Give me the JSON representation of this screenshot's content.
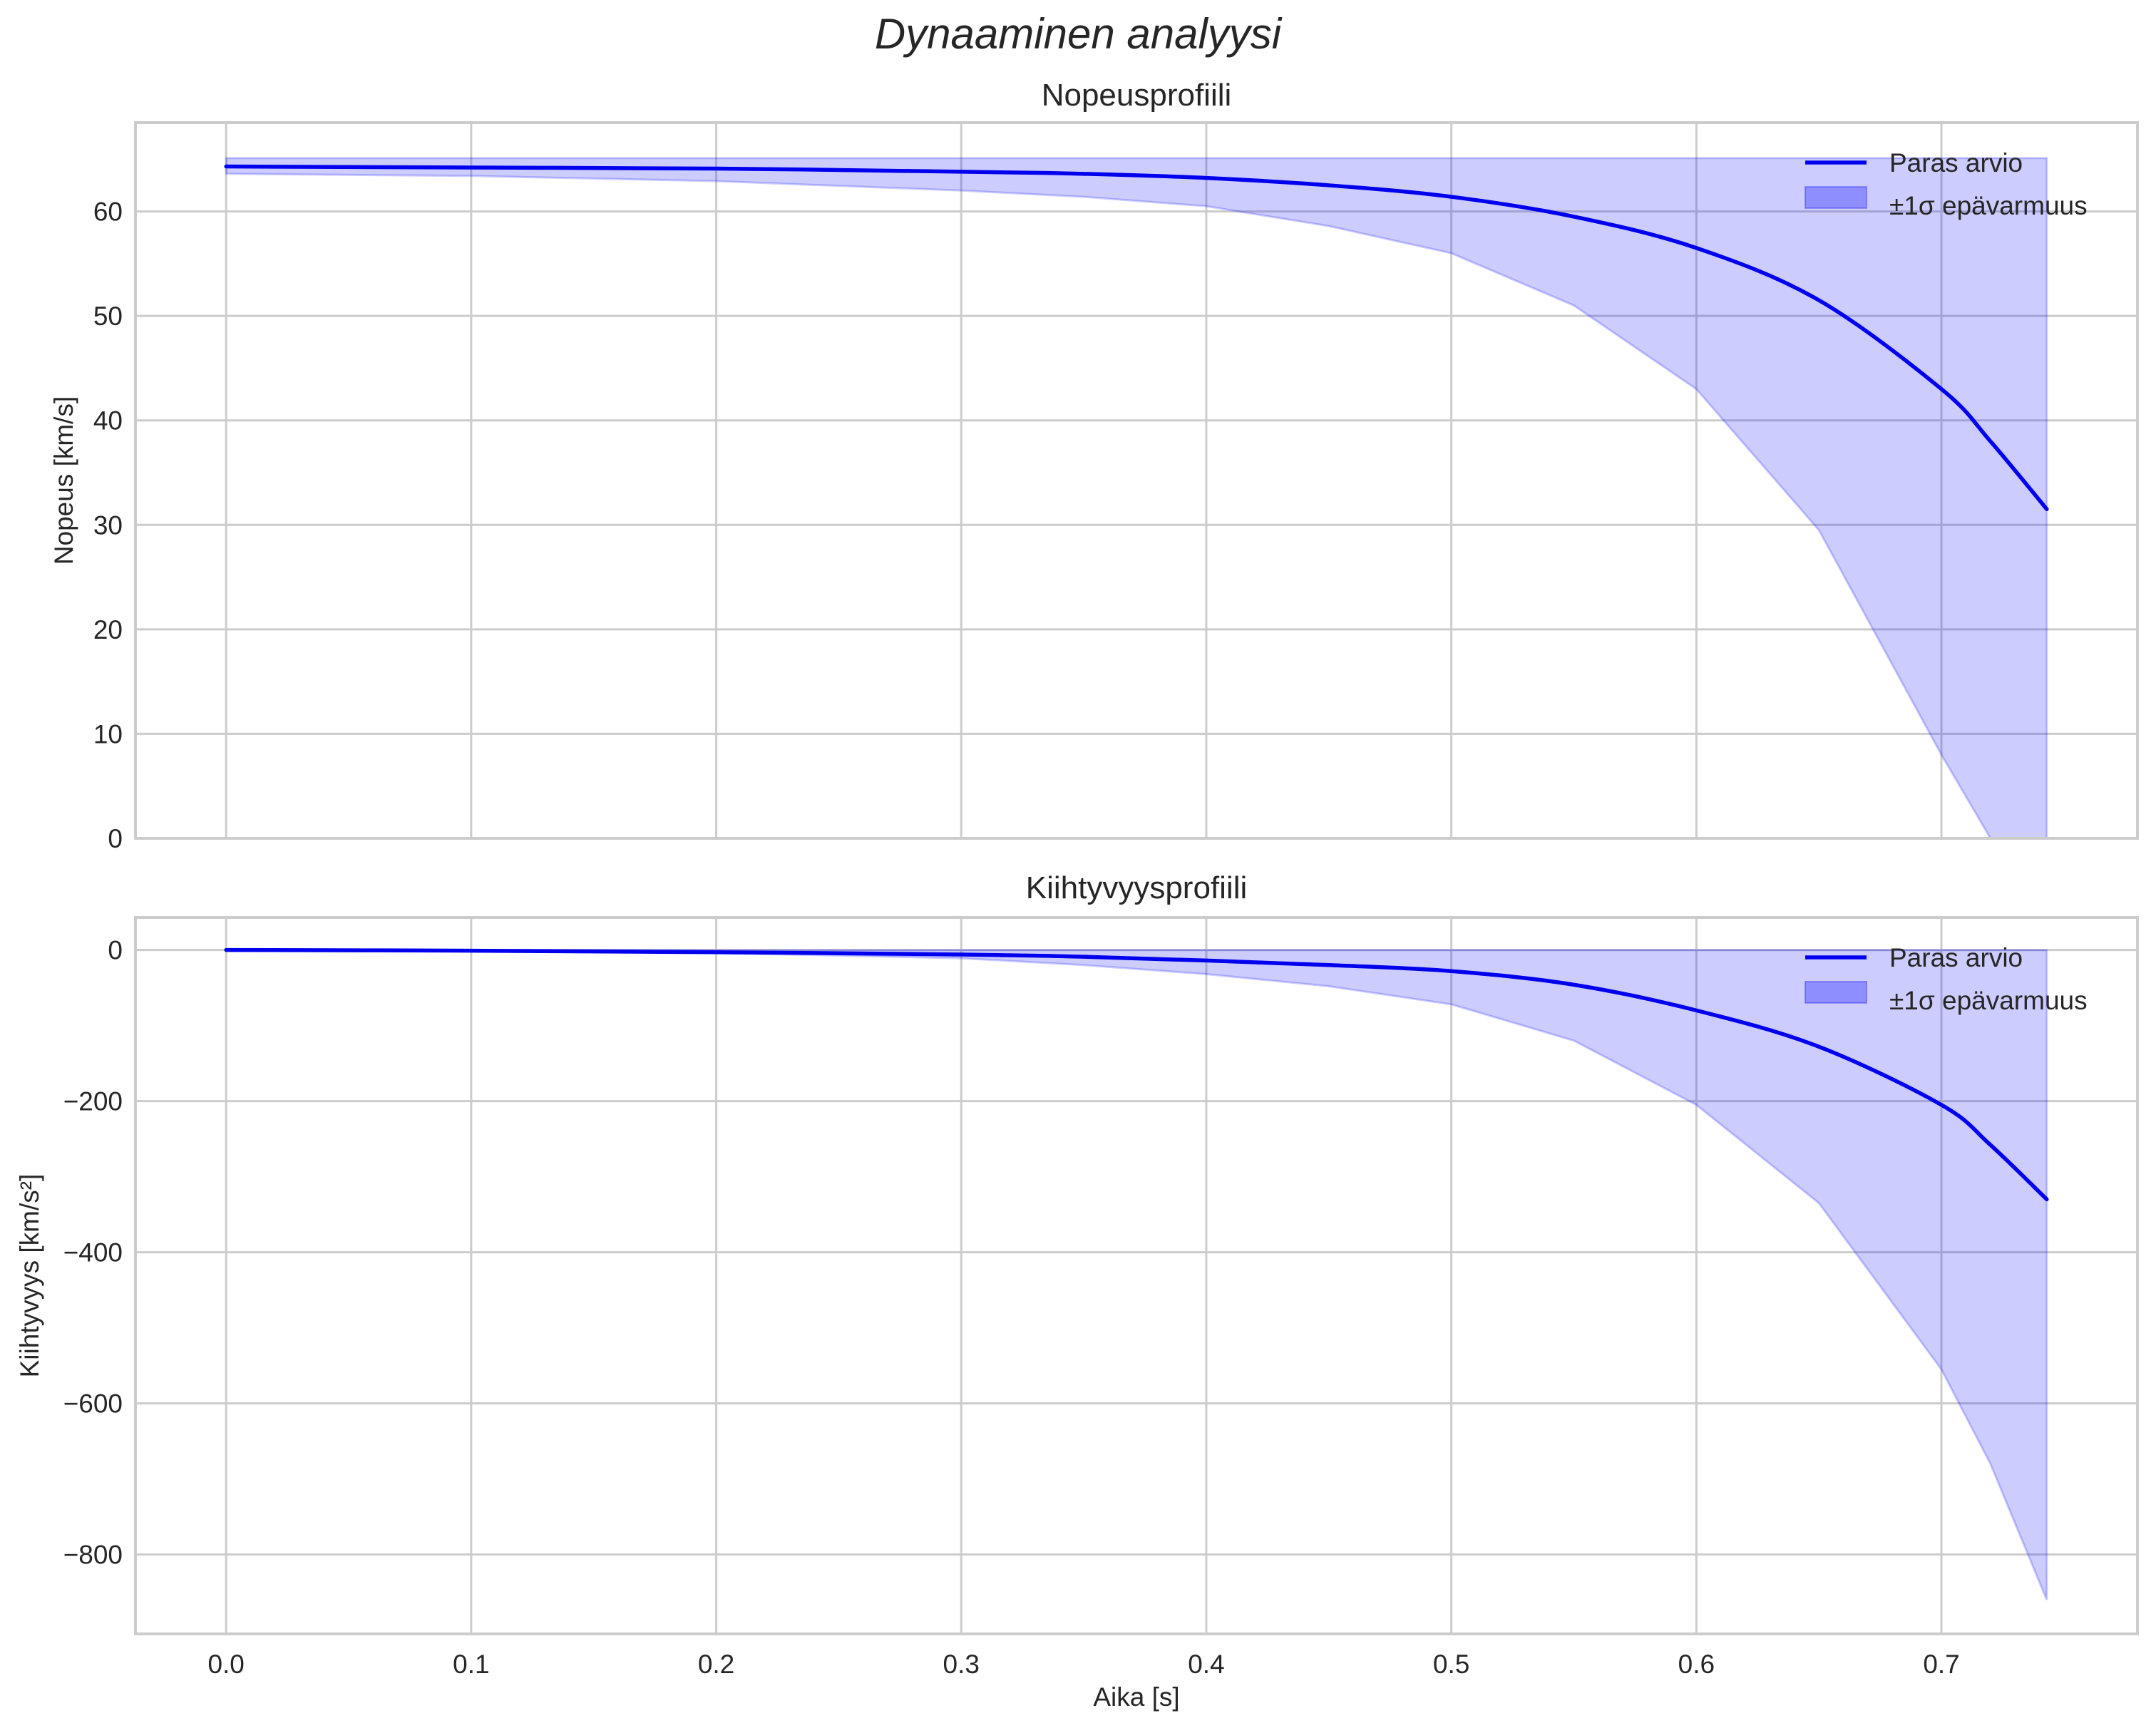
{
  "figure": {
    "suptitle": "Dynaaminen analyysi",
    "xlabel": "Aika [s]",
    "x_ticks": [
      "0.0",
      "0.1",
      "0.2",
      "0.3",
      "0.4",
      "0.5",
      "0.6",
      "0.7"
    ],
    "colors": {
      "line": "#0000ee",
      "band": "#0000ff",
      "band_alpha": 0.2,
      "grid": "#cccccc",
      "spine": "#cccccc",
      "text": "#262626"
    }
  },
  "legend": {
    "line_label": "Paras arvio",
    "band_label": "±1σ epävarmuus"
  },
  "chart_data": [
    {
      "type": "line",
      "title": "Nopeusprofiili",
      "xlabel": "",
      "ylabel": "Nopeus [km/s]",
      "xlim": [
        -0.037,
        0.78
      ],
      "ylim": [
        0,
        68.5
      ],
      "y_ticks": [
        "0",
        "10",
        "20",
        "30",
        "40",
        "50",
        "60"
      ],
      "grid": true,
      "legend_position": "upper right",
      "x": [
        0.0,
        0.1,
        0.2,
        0.3,
        0.35,
        0.4,
        0.45,
        0.5,
        0.55,
        0.6,
        0.65,
        0.7,
        0.72,
        0.743
      ],
      "series": [
        {
          "name": "Paras arvio",
          "values": [
            64.3,
            64.2,
            64.1,
            63.8,
            63.6,
            63.2,
            62.5,
            61.4,
            59.5,
            56.5,
            51.5,
            43.0,
            38.0,
            31.5
          ]
        },
        {
          "name": "±1σ epävarmuus (lower)",
          "values": [
            63.6,
            63.4,
            62.9,
            62.0,
            61.4,
            60.5,
            58.6,
            56.0,
            51.0,
            43.0,
            29.5,
            8.0,
            -3.0,
            -15.0
          ]
        },
        {
          "name": "±1σ epävarmuus (upper)",
          "values": [
            65.1,
            65.1,
            65.1,
            65.1,
            65.1,
            65.1,
            65.1,
            65.1,
            65.1,
            65.1,
            65.1,
            65.1,
            65.1,
            65.1
          ]
        }
      ]
    },
    {
      "type": "line",
      "title": "Kiihtyvyysprofiili",
      "xlabel": "Aika [s]",
      "ylabel": "Kiihtyvyys [km/s²]",
      "xlim": [
        -0.037,
        0.78
      ],
      "ylim": [
        -905,
        43
      ],
      "y_ticks": [
        "0",
        "−200",
        "−400",
        "−600",
        "−800"
      ],
      "grid": true,
      "legend_position": "upper right",
      "x": [
        0.0,
        0.1,
        0.2,
        0.3,
        0.35,
        0.4,
        0.45,
        0.5,
        0.55,
        0.6,
        0.65,
        0.7,
        0.72,
        0.743
      ],
      "series": [
        {
          "name": "Paras arvio",
          "values": [
            0,
            -1,
            -3,
            -6,
            -9,
            -14,
            -20,
            -28,
            -46,
            -80,
            -128,
            -205,
            -258,
            -330
          ]
        },
        {
          "name": "±1σ epävarmuus (lower)",
          "values": [
            0,
            -1,
            -4,
            -11,
            -20,
            -32,
            -48,
            -72,
            -120,
            -205,
            -335,
            -555,
            -680,
            -860
          ]
        },
        {
          "name": "±1σ epävarmuus (upper)",
          "values": [
            0,
            0,
            0,
            0,
            0,
            0,
            0,
            0,
            0,
            0,
            0,
            0,
            0,
            0
          ]
        }
      ]
    }
  ]
}
